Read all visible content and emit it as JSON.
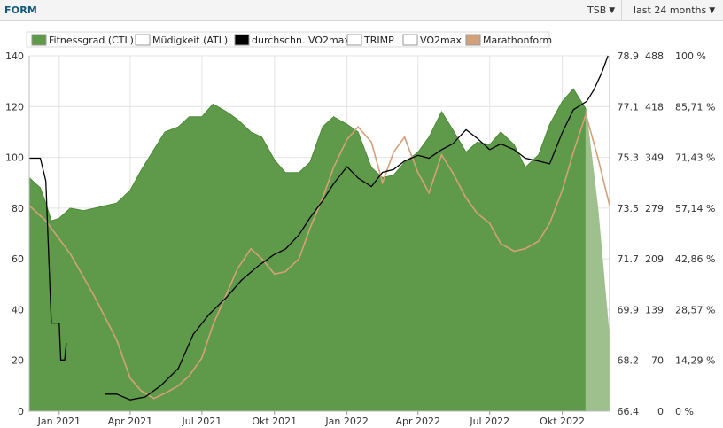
{
  "header": {
    "title": "FORM",
    "metric_select": "TSB",
    "range_select": "last 24 months"
  },
  "colors": {
    "fitness_fill": "#5f9a4a",
    "fitness_stroke": "#4c8a38",
    "projection_fill": "#9dc08d",
    "vo2avg_line": "#000000",
    "marathon_line": "#d4a07a",
    "grid": "#e4e4e4"
  },
  "chart_data": {
    "type": "area",
    "x_tick_labels": [
      "Jan 2021",
      "Apr 2021",
      "Jul 2021",
      "Okt 2021",
      "Jan 2022",
      "Apr 2022",
      "Jul 2022",
      "Okt 2022"
    ],
    "x_range": [
      "2020-11-24",
      "2022-11-30"
    ],
    "y_axes": {
      "left": {
        "ylim": [
          0,
          140
        ],
        "ticks": [
          "0",
          "20",
          "40",
          "60",
          "80",
          "100",
          "120",
          "140"
        ]
      },
      "vo2max": {
        "ylim": [
          66.4,
          78.9
        ],
        "ticks": [
          "66.4",
          "68.2",
          "69.9",
          "71.7",
          "73.5",
          "75.3",
          "77.1",
          "78.9"
        ]
      },
      "trimp": {
        "ylim": [
          0,
          488
        ],
        "ticks": [
          "0",
          "70",
          "139",
          "209",
          "279",
          "349",
          "418",
          "488"
        ]
      },
      "marathon_pct": {
        "ylim": [
          0,
          100
        ],
        "ticks": [
          "0 %",
          "14,29 %",
          "28,57 %",
          "42,86 %",
          "57,14 %",
          "71,43 %",
          "85,71 %",
          "100 %"
        ]
      }
    },
    "grid": true,
    "legend_position": "top",
    "legend": [
      {
        "name": "Fitnessgrad (CTL)",
        "swatch": "#5f9a4a"
      },
      {
        "name": "Müdigkeit (ATL)",
        "swatch": "#ffffff"
      },
      {
        "name": "durchschn. VO2max",
        "swatch": "#000000"
      },
      {
        "name": "TRIMP",
        "swatch": "#ffffff"
      },
      {
        "name": "VO2max",
        "swatch": "#ffffff"
      },
      {
        "name": "Marathonform",
        "swatch": "#d4a07a"
      }
    ],
    "series": [
      {
        "name": "Fitnessgrad (CTL)",
        "axis": "left",
        "x": [
          "2020-11-24",
          "2020-12-01",
          "2020-12-08",
          "2020-12-15",
          "2020-12-22",
          "2021-01-01",
          "2021-01-08",
          "2021-01-15",
          "2021-02-01",
          "2021-02-15",
          "2021-03-01",
          "2021-03-15",
          "2021-04-01",
          "2021-04-15",
          "2021-05-01",
          "2021-05-15",
          "2021-06-01",
          "2021-06-15",
          "2021-07-01",
          "2021-07-15",
          "2021-08-01",
          "2021-08-15",
          "2021-09-01",
          "2021-09-15",
          "2021-10-01",
          "2021-10-15",
          "2021-11-01",
          "2021-11-15",
          "2021-12-01",
          "2021-12-15",
          "2022-01-01",
          "2022-01-15",
          "2022-02-01",
          "2022-02-15",
          "2022-03-01",
          "2022-03-15",
          "2022-04-01",
          "2022-04-15",
          "2022-05-01",
          "2022-05-15",
          "2022-06-01",
          "2022-06-15",
          "2022-07-01",
          "2022-07-15",
          "2022-08-01",
          "2022-08-15",
          "2022-09-01",
          "2022-09-15",
          "2022-10-01",
          "2022-10-15",
          "2022-10-31",
          "2022-11-15",
          "2022-11-30"
        ],
        "values": [
          92,
          90,
          88,
          82,
          75,
          76,
          78,
          80,
          79,
          80,
          81,
          82,
          87,
          95,
          103,
          110,
          112,
          116,
          116,
          121,
          118,
          115,
          110,
          108,
          99,
          94,
          94,
          98,
          112,
          116,
          113,
          110,
          96,
          92,
          93,
          98,
          102,
          108,
          118,
          111,
          102,
          106,
          105,
          110,
          105,
          96,
          101,
          113,
          122,
          127,
          119,
          80,
          28
        ]
      },
      {
        "name": "durchschn. VO2max",
        "axis": "vo2max",
        "x": [
          "2020-11-24",
          "2020-12-08",
          "2020-12-15",
          "2020-12-22",
          "2021-01-01",
          "2021-01-03",
          "2021-01-08",
          "2021-01-10",
          "2021-02-10",
          "2021-02-28",
          "2021-03-15",
          "2021-04-01",
          "2021-04-20",
          "2021-05-10",
          "2021-06-01",
          "2021-06-20",
          "2021-07-10",
          "2021-08-01",
          "2021-08-20",
          "2021-09-10",
          "2021-09-30",
          "2021-10-15",
          "2021-11-01",
          "2021-11-15",
          "2021-12-01",
          "2021-12-15",
          "2022-01-01",
          "2022-01-15",
          "2022-02-01",
          "2022-02-15",
          "2022-03-01",
          "2022-03-15",
          "2022-04-01",
          "2022-04-15",
          "2022-05-01",
          "2022-05-15",
          "2022-06-01",
          "2022-06-15",
          "2022-07-01",
          "2022-07-15",
          "2022-08-01",
          "2022-08-15",
          "2022-09-01",
          "2022-09-15",
          "2022-10-01",
          "2022-10-15",
          "2022-11-01",
          "2022-11-10",
          "2022-11-20",
          "2022-11-28"
        ],
        "values": [
          75.3,
          75.3,
          74.5,
          69.5,
          69.5,
          68.2,
          68.2,
          68.8,
          null,
          67.0,
          67.0,
          66.8,
          66.9,
          67.3,
          67.9,
          69.1,
          69.8,
          70.4,
          71.0,
          71.5,
          71.9,
          72.1,
          72.6,
          73.2,
          73.8,
          74.4,
          75.0,
          74.6,
          74.3,
          74.8,
          74.9,
          75.2,
          75.4,
          75.3,
          75.6,
          75.8,
          76.3,
          76.0,
          75.6,
          75.8,
          75.6,
          75.3,
          75.2,
          75.1,
          76.2,
          77.0,
          77.3,
          77.7,
          78.3,
          78.9
        ]
      },
      {
        "name": "Marathonform",
        "axis": "left",
        "x": [
          "2020-11-24",
          "2020-12-15",
          "2021-01-15",
          "2021-02-15",
          "2021-03-15",
          "2021-04-01",
          "2021-04-15",
          "2021-05-01",
          "2021-05-15",
          "2021-06-01",
          "2021-06-15",
          "2021-07-01",
          "2021-07-15",
          "2021-08-01",
          "2021-08-15",
          "2021-09-01",
          "2021-09-15",
          "2021-10-01",
          "2021-10-15",
          "2021-11-01",
          "2021-11-15",
          "2021-12-01",
          "2021-12-15",
          "2022-01-01",
          "2022-01-15",
          "2022-02-01",
          "2022-02-15",
          "2022-03-01",
          "2022-03-15",
          "2022-04-01",
          "2022-04-15",
          "2022-05-01",
          "2022-05-15",
          "2022-06-01",
          "2022-06-15",
          "2022-07-01",
          "2022-07-15",
          "2022-08-01",
          "2022-08-15",
          "2022-09-01",
          "2022-09-15",
          "2022-10-01",
          "2022-10-15",
          "2022-10-31",
          "2022-11-15",
          "2022-11-30"
        ],
        "values": [
          81,
          75,
          62,
          45,
          28,
          13,
          8,
          5,
          7,
          10,
          14,
          21,
          34,
          46,
          56,
          64,
          60,
          54,
          55,
          60,
          72,
          84,
          96,
          107,
          112,
          106,
          90,
          102,
          108,
          94,
          86,
          101,
          94,
          84,
          78,
          74,
          66,
          63,
          64,
          67,
          74,
          87,
          102,
          117,
          100,
          81
        ]
      }
    ]
  }
}
